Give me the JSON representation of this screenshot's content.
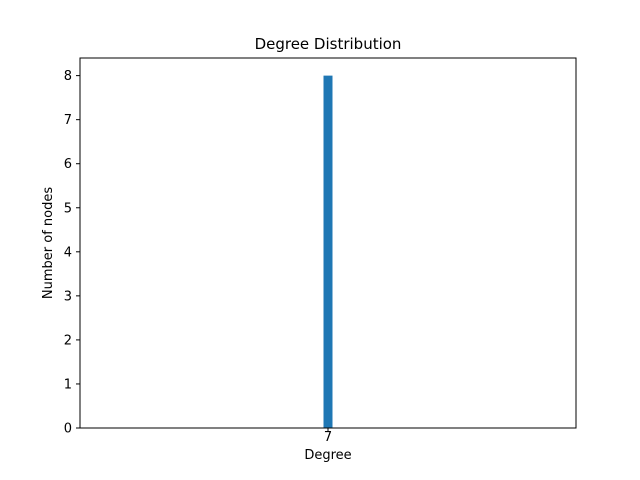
{
  "chart_data": {
    "type": "bar",
    "title": "Degree Distribution",
    "xlabel": "Degree",
    "ylabel": "Number of nodes",
    "categories": [
      "7"
    ],
    "values": [
      8
    ],
    "ylim": [
      0,
      8.4
    ],
    "yticks": [
      0,
      1,
      2,
      3,
      4,
      5,
      6,
      7,
      8
    ],
    "grid": false,
    "bar_color": "#1f77b4"
  }
}
